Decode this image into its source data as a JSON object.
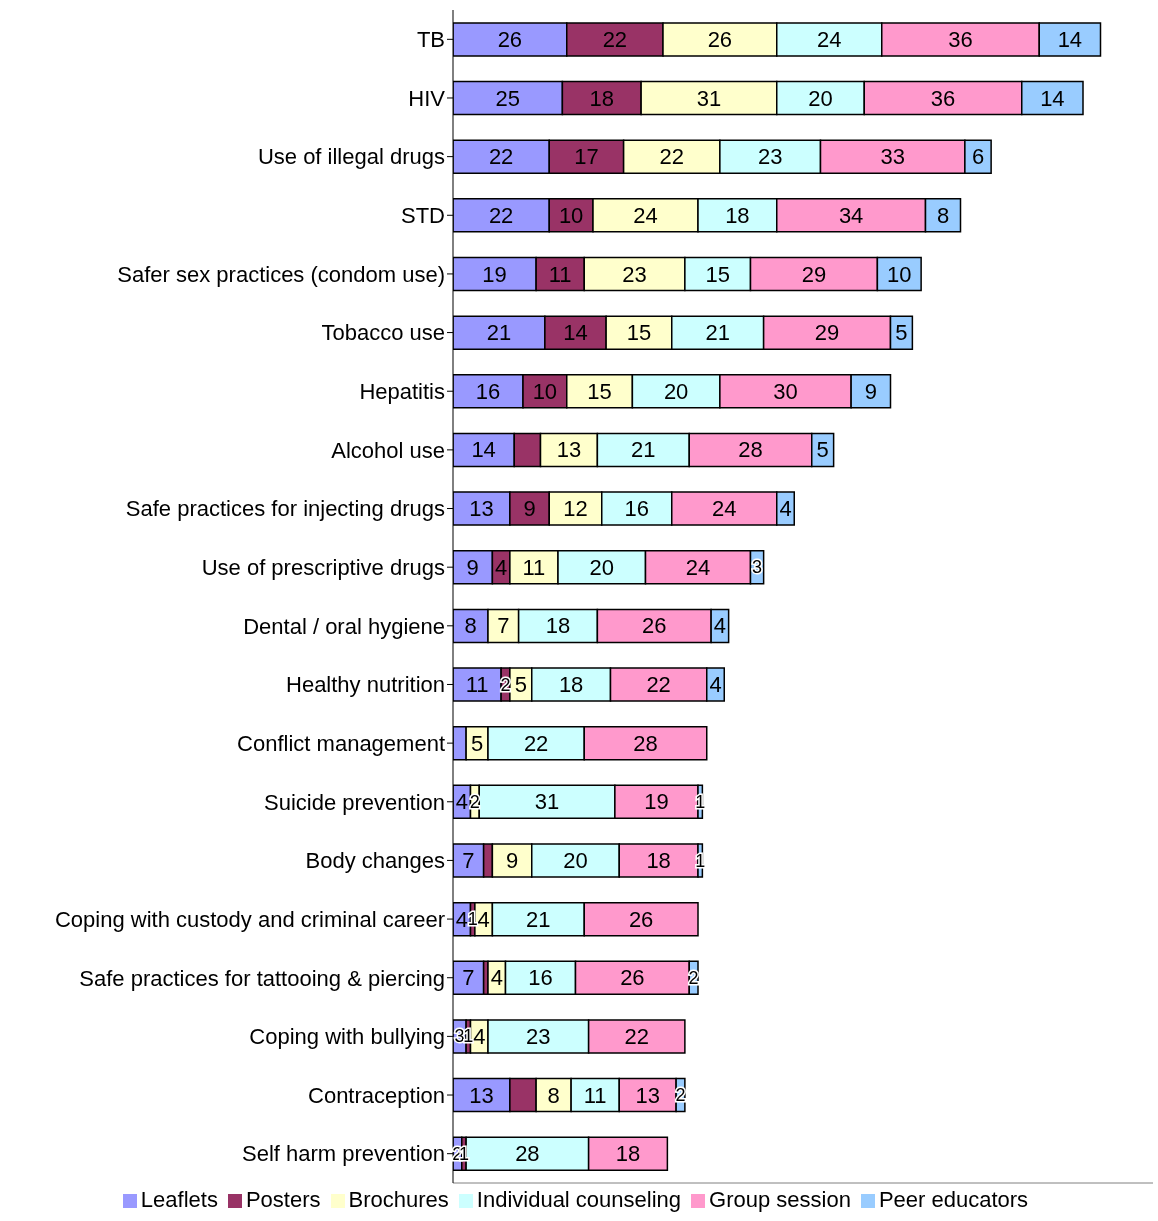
{
  "chart_data": {
    "type": "bar",
    "orientation": "horizontal",
    "stacked": true,
    "legend": "bottom",
    "tick_labels": "y",
    "xlim": [
      0,
      160
    ],
    "categories": [
      "TB",
      "HIV",
      "Use of illegal drugs",
      "STD",
      "Safer sex practices (condom use)",
      "Tobacco use",
      "Hepatitis",
      "Alcohol use",
      "Safe practices for injecting drugs",
      "Use of prescriptive drugs",
      "Dental / oral hygiene",
      "Healthy nutrition",
      "Conflict management",
      "Suicide prevention",
      "Body changes",
      "Coping with custody and criminal career",
      "Safe practices for tattooing & piercing",
      "Coping with bullying",
      "Contraception",
      "Self harm prevention"
    ],
    "series": [
      {
        "name": "Leaflets",
        "color": "#9999ff",
        "values": [
          26,
          25,
          22,
          22,
          19,
          21,
          16,
          14,
          13,
          9,
          8,
          11,
          3,
          4,
          7,
          4,
          7,
          3,
          13,
          2
        ],
        "value_labels": [
          "26",
          "25",
          "22",
          "22",
          "19",
          "21",
          "16",
          "14",
          "13",
          "9",
          "8",
          "11",
          null,
          "4",
          "7",
          "4",
          "7",
          "3",
          "13",
          "2"
        ]
      },
      {
        "name": "Posters",
        "color": "#993366",
        "values": [
          22,
          18,
          17,
          10,
          11,
          14,
          10,
          6,
          9,
          4,
          0,
          2,
          0,
          0,
          2,
          1,
          1,
          1,
          6,
          1
        ],
        "value_labels": [
          "22",
          "18",
          "17",
          "10",
          "11",
          "14",
          "10",
          null,
          "9",
          "4",
          null,
          "2",
          null,
          null,
          null,
          "1",
          null,
          "1",
          null,
          "1"
        ]
      },
      {
        "name": "Brochures",
        "color": "#ffffcc",
        "values": [
          26,
          31,
          22,
          24,
          23,
          15,
          15,
          13,
          12,
          11,
          7,
          5,
          5,
          2,
          9,
          4,
          4,
          4,
          8,
          0
        ],
        "value_labels": [
          "26",
          "31",
          "22",
          "24",
          "23",
          "15",
          "15",
          "13",
          "12",
          "11",
          "7",
          "5",
          "5",
          "2",
          "9",
          "4",
          "4",
          "4",
          "8",
          null
        ]
      },
      {
        "name": "Individual counseling",
        "color": "#ccffff",
        "values": [
          24,
          20,
          23,
          18,
          15,
          21,
          20,
          21,
          16,
          20,
          18,
          18,
          22,
          31,
          20,
          21,
          16,
          23,
          11,
          28
        ],
        "value_labels": [
          "24",
          "20",
          "23",
          "18",
          "15",
          "21",
          "20",
          "21",
          "16",
          "20",
          "18",
          "18",
          "22",
          "31",
          "20",
          "21",
          "16",
          "23",
          "11",
          "28"
        ]
      },
      {
        "name": "Group session",
        "color": "#ff99cc",
        "values": [
          36,
          36,
          33,
          34,
          29,
          29,
          30,
          28,
          24,
          24,
          26,
          22,
          28,
          19,
          18,
          26,
          26,
          22,
          13,
          18
        ],
        "value_labels": [
          "36",
          "36",
          "33",
          "34",
          "29",
          "29",
          "30",
          "28",
          "24",
          "24",
          "26",
          "22",
          "28",
          "19",
          "18",
          "26",
          "26",
          "22",
          "13",
          "18"
        ]
      },
      {
        "name": "Peer educators",
        "color": "#99ccff",
        "values": [
          14,
          14,
          6,
          8,
          10,
          5,
          9,
          5,
          4,
          3,
          4,
          4,
          0,
          1,
          1,
          0,
          2,
          0,
          2,
          0
        ],
        "value_labels": [
          "14",
          "14",
          "6",
          "8",
          "10",
          "5",
          "9",
          "5",
          "4",
          "3",
          "4",
          "4",
          null,
          "1",
          "1",
          null,
          "2",
          null,
          "2",
          null
        ]
      }
    ]
  }
}
